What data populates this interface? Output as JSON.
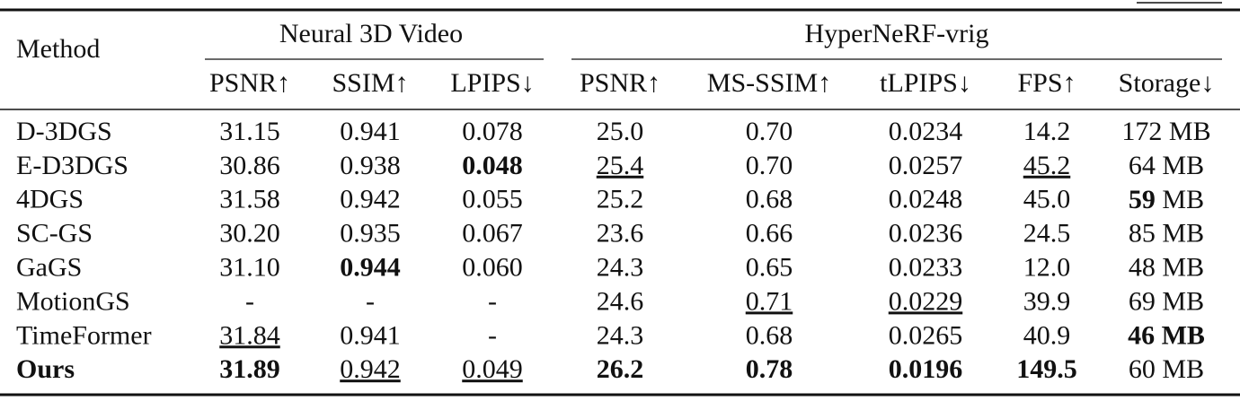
{
  "table": {
    "method_header": "Method",
    "groups": [
      "Neural 3D Video",
      "HyperNeRF-vrig"
    ],
    "columns": [
      "PSNR↑",
      "SSIM↑",
      "LPIPS↓",
      "PSNR↑",
      "MS-SSIM↑",
      "tLPIPS↓",
      "FPS↑",
      "Storage↓"
    ],
    "rows": [
      [
        "D-3DGS",
        "31.15",
        "0.941",
        "0.078",
        "25.0",
        "0.70",
        "0.0234",
        "14.2",
        "172 MB"
      ],
      [
        "E-D3DGS",
        "30.86",
        "0.938",
        "0.048",
        "25.4",
        "0.70",
        "0.0257",
        "45.2",
        "64 MB"
      ],
      [
        "4DGS",
        "31.58",
        "0.942",
        "0.055",
        "25.2",
        "0.68",
        "0.0248",
        "45.0",
        "59 MB"
      ],
      [
        "SC-GS",
        "30.20",
        "0.935",
        "0.067",
        "23.6",
        "0.66",
        "0.0236",
        "24.5",
        "85 MB"
      ],
      [
        "GaGS",
        "31.10",
        "0.944",
        "0.060",
        "24.3",
        "0.65",
        "0.0233",
        "12.0",
        "48 MB"
      ],
      [
        "MotionGS",
        "-",
        "-",
        "-",
        "24.6",
        "0.71",
        "0.0229",
        "39.9",
        "69 MB"
      ],
      [
        "TimeFormer",
        "31.84",
        "0.941",
        "-",
        "24.3",
        "0.68",
        "0.0265",
        "40.9",
        "46 MB"
      ],
      [
        "Ours",
        "31.89",
        "0.942",
        "0.049",
        "26.2",
        "0.78",
        "0.0196",
        "149.5",
        "60 MB"
      ]
    ]
  }
}
